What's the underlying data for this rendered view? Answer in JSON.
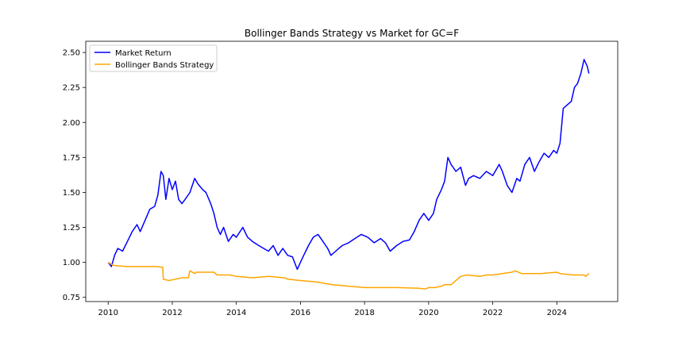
{
  "colors": {
    "market": "#0000ff",
    "strategy": "#ffa500",
    "axis": "#000000",
    "background": "#ffffff"
  },
  "chart_data": {
    "type": "line",
    "title": "Bollinger Bands Strategy vs Market for GC=F",
    "xlabel": "",
    "ylabel": "",
    "xlim": [
      2009.3,
      2025.9
    ],
    "ylim": [
      0.72,
      2.58
    ],
    "grid": false,
    "legend_position": "top-left",
    "x_ticks": [
      2010,
      2012,
      2014,
      2016,
      2018,
      2020,
      2022,
      2024
    ],
    "x_tick_labels": [
      "2010",
      "2012",
      "2014",
      "2016",
      "2018",
      "2020",
      "2022",
      "2024"
    ],
    "y_ticks": [
      0.75,
      1.0,
      1.25,
      1.5,
      1.75,
      2.0,
      2.25,
      2.5
    ],
    "y_tick_labels": [
      "0.75",
      "1.00",
      "1.25",
      "1.50",
      "1.75",
      "2.00",
      "2.25",
      "2.50"
    ],
    "series": [
      {
        "name": "Market Return",
        "color": "#0000ff",
        "x": [
          2010.0,
          2010.1,
          2010.2,
          2010.3,
          2010.45,
          2010.6,
          2010.75,
          2010.9,
          2011.0,
          2011.15,
          2011.3,
          2011.45,
          2011.55,
          2011.65,
          2011.72,
          2011.8,
          2011.9,
          2012.0,
          2012.1,
          2012.2,
          2012.3,
          2012.4,
          2012.55,
          2012.7,
          2012.8,
          2012.95,
          2013.05,
          2013.2,
          2013.3,
          2013.4,
          2013.5,
          2013.6,
          2013.75,
          2013.9,
          2014.0,
          2014.2,
          2014.35,
          2014.5,
          2014.7,
          2014.85,
          2015.0,
          2015.15,
          2015.3,
          2015.45,
          2015.6,
          2015.75,
          2015.9,
          2016.0,
          2016.1,
          2016.25,
          2016.4,
          2016.55,
          2016.7,
          2016.85,
          2016.95,
          2017.1,
          2017.3,
          2017.5,
          2017.7,
          2017.9,
          2018.1,
          2018.3,
          2018.5,
          2018.65,
          2018.8,
          2019.0,
          2019.2,
          2019.4,
          2019.55,
          2019.7,
          2019.85,
          2020.0,
          2020.15,
          2020.25,
          2020.4,
          2020.5,
          2020.6,
          2020.7,
          2020.85,
          2021.0,
          2021.15,
          2021.25,
          2021.4,
          2021.6,
          2021.8,
          2022.0,
          2022.2,
          2022.3,
          2022.45,
          2022.6,
          2022.75,
          2022.85,
          2023.0,
          2023.15,
          2023.3,
          2023.45,
          2023.6,
          2023.75,
          2023.9,
          2024.0,
          2024.1,
          2024.2,
          2024.3,
          2024.45,
          2024.55,
          2024.65,
          2024.75,
          2024.85,
          2024.95,
          2025.0
        ],
        "y": [
          1.0,
          0.97,
          1.05,
          1.1,
          1.08,
          1.15,
          1.22,
          1.27,
          1.22,
          1.3,
          1.38,
          1.4,
          1.48,
          1.65,
          1.62,
          1.45,
          1.6,
          1.52,
          1.58,
          1.45,
          1.42,
          1.45,
          1.5,
          1.6,
          1.56,
          1.52,
          1.5,
          1.42,
          1.35,
          1.25,
          1.2,
          1.25,
          1.15,
          1.2,
          1.18,
          1.25,
          1.18,
          1.15,
          1.12,
          1.1,
          1.08,
          1.12,
          1.05,
          1.1,
          1.05,
          1.04,
          0.95,
          1.0,
          1.05,
          1.12,
          1.18,
          1.2,
          1.15,
          1.1,
          1.05,
          1.08,
          1.12,
          1.14,
          1.17,
          1.2,
          1.18,
          1.14,
          1.17,
          1.14,
          1.08,
          1.12,
          1.15,
          1.16,
          1.22,
          1.3,
          1.35,
          1.3,
          1.35,
          1.45,
          1.52,
          1.58,
          1.75,
          1.7,
          1.65,
          1.68,
          1.55,
          1.6,
          1.62,
          1.6,
          1.65,
          1.62,
          1.7,
          1.65,
          1.55,
          1.5,
          1.6,
          1.58,
          1.7,
          1.75,
          1.65,
          1.72,
          1.78,
          1.75,
          1.8,
          1.78,
          1.85,
          2.1,
          2.12,
          2.15,
          2.25,
          2.28,
          2.35,
          2.45,
          2.4,
          2.35
        ]
      },
      {
        "name": "Bollinger Bands Strategy",
        "color": "#ffa500",
        "x": [
          2010.0,
          2010.15,
          2010.3,
          2010.6,
          2011.0,
          2011.5,
          2011.7,
          2011.72,
          2011.9,
          2012.1,
          2012.3,
          2012.5,
          2012.55,
          2012.7,
          2012.75,
          2013.0,
          2013.3,
          2013.4,
          2013.8,
          2014.0,
          2014.5,
          2015.0,
          2015.5,
          2015.6,
          2016.0,
          2016.5,
          2017.0,
          2017.5,
          2018.0,
          2019.0,
          2019.7,
          2019.9,
          2020.0,
          2020.2,
          2020.4,
          2020.5,
          2020.7,
          2020.9,
          2021.0,
          2021.2,
          2021.6,
          2021.8,
          2022.0,
          2022.3,
          2022.6,
          2022.7,
          2022.9,
          2023.0,
          2023.5,
          2024.0,
          2024.1,
          2024.5,
          2024.85,
          2024.9,
          2025.0
        ],
        "y": [
          1.0,
          0.98,
          0.975,
          0.97,
          0.97,
          0.97,
          0.965,
          0.88,
          0.87,
          0.88,
          0.89,
          0.89,
          0.94,
          0.92,
          0.93,
          0.93,
          0.93,
          0.91,
          0.91,
          0.9,
          0.89,
          0.9,
          0.89,
          0.88,
          0.87,
          0.86,
          0.84,
          0.83,
          0.82,
          0.82,
          0.815,
          0.81,
          0.82,
          0.82,
          0.83,
          0.84,
          0.84,
          0.88,
          0.9,
          0.91,
          0.9,
          0.91,
          0.91,
          0.92,
          0.93,
          0.94,
          0.92,
          0.92,
          0.92,
          0.93,
          0.92,
          0.91,
          0.91,
          0.9,
          0.92
        ]
      }
    ]
  }
}
